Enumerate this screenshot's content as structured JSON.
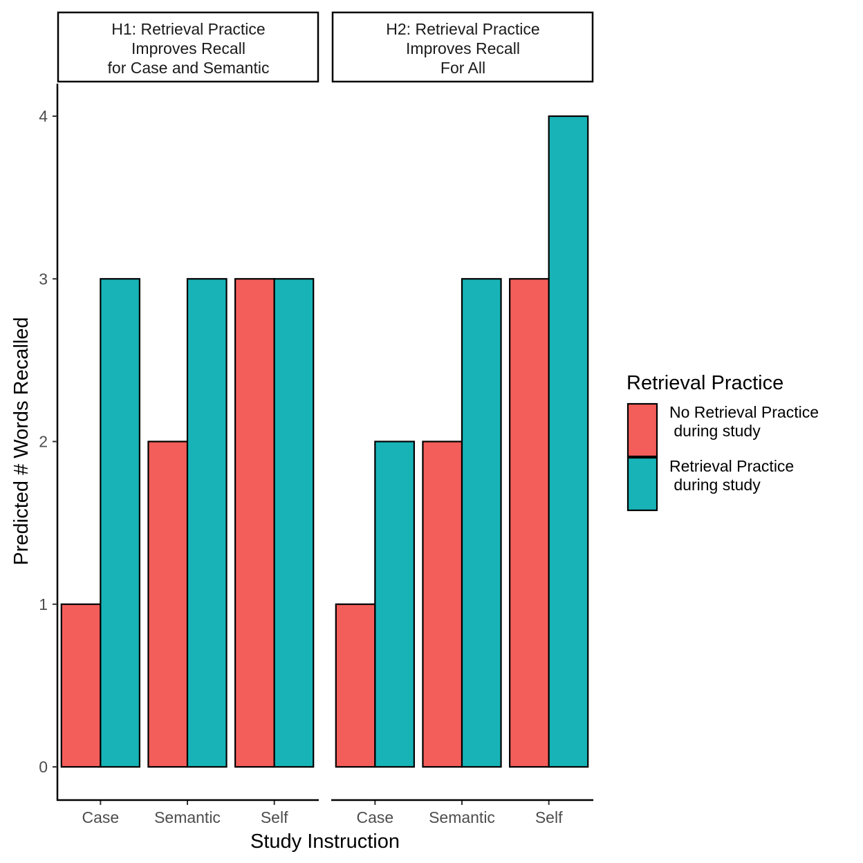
{
  "chart_data": {
    "type": "bar",
    "facets": [
      {
        "strip_label": [
          "H1: Retrieval Practice",
          "Improves Recall",
          "for Case and Semantic"
        ],
        "categories": [
          "Case",
          "Semantic",
          "Self"
        ],
        "series": [
          {
            "name": "No Retrieval Practice\n during study",
            "values": [
              1,
              2,
              3
            ]
          },
          {
            "name": "Retrieval Practice\n during study",
            "values": [
              3,
              3,
              3
            ]
          }
        ]
      },
      {
        "strip_label": [
          "H2: Retrieval Practice",
          "Improves Recall",
          "For All"
        ],
        "categories": [
          "Case",
          "Semantic",
          "Self"
        ],
        "series": [
          {
            "name": "No Retrieval Practice\n during study",
            "values": [
              1,
              2,
              3
            ]
          },
          {
            "name": "Retrieval Practice\n during study",
            "values": [
              2,
              3,
              4
            ]
          }
        ]
      }
    ],
    "xlabel": "Study Instruction",
    "ylabel": "Predicted # Words Recalled",
    "ylim": [
      -0.2,
      4.2
    ],
    "yticks": [
      "0",
      "1",
      "2",
      "3",
      "4"
    ],
    "grid": false,
    "legend": {
      "title": "Retrieval Practice",
      "position": "right",
      "entries": [
        {
          "label_lines": [
            "No Retrieval Practice",
            " during study"
          ],
          "color": "#F35E5A"
        },
        {
          "label_lines": [
            "Retrieval Practice",
            " during study"
          ],
          "color": "#17B3B7"
        }
      ]
    },
    "colors": [
      "#F35E5A",
      "#17B3B7"
    ],
    "bar_outline_color": "#000000"
  }
}
